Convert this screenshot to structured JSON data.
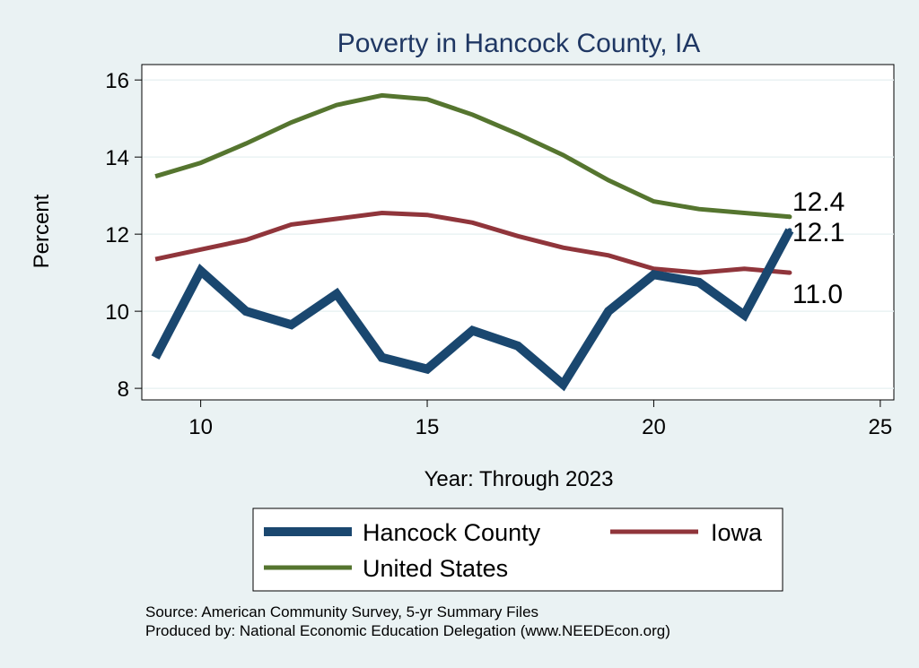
{
  "chart_data": {
    "type": "line",
    "title": "Poverty in Hancock County, IA",
    "xlabel": "Year: Through 2023",
    "ylabel": "Percent",
    "xlim": [
      8.7,
      25.3
    ],
    "ylim": [
      7.7,
      16.4
    ],
    "xticks": [
      10,
      15,
      20,
      25
    ],
    "yticks": [
      8,
      10,
      12,
      14,
      16
    ],
    "grid": true,
    "legend_position": "bottom",
    "series": [
      {
        "name": "Hancock County",
        "color": "#1a476f",
        "width": 10,
        "x": [
          9,
          10,
          11,
          12,
          13,
          14,
          15,
          16,
          17,
          18,
          19,
          20,
          21,
          22,
          23
        ],
        "y": [
          8.8,
          11.05,
          10.0,
          9.65,
          10.45,
          8.8,
          8.5,
          9.5,
          9.1,
          8.1,
          10.0,
          10.95,
          10.75,
          9.9,
          12.1
        ],
        "end_label": "12.1"
      },
      {
        "name": "Iowa",
        "color": "#90353b",
        "width": 5,
        "x": [
          9,
          10,
          11,
          12,
          13,
          14,
          15,
          16,
          17,
          18,
          19,
          20,
          21,
          22,
          23
        ],
        "y": [
          11.35,
          11.6,
          11.85,
          12.25,
          12.4,
          12.55,
          12.5,
          12.3,
          11.95,
          11.65,
          11.45,
          11.1,
          11.0,
          11.1,
          11.0
        ],
        "end_label": "11.0"
      },
      {
        "name": "United States",
        "color": "#55752f",
        "width": 5,
        "x": [
          9,
          10,
          11,
          12,
          13,
          14,
          15,
          16,
          17,
          18,
          19,
          20,
          21,
          22,
          23
        ],
        "y": [
          13.5,
          13.85,
          14.35,
          14.9,
          15.35,
          15.6,
          15.5,
          15.1,
          14.6,
          14.05,
          13.4,
          12.85,
          12.65,
          12.55,
          12.45
        ],
        "end_label": "12.4"
      }
    ],
    "legend_order": [
      "Hancock County",
      "Iowa",
      "United States"
    ],
    "source_lines": [
      "Source: American Community Survey, 5-yr Summary Files",
      "Produced by: National Economic Education Delegation (www.NEEDEcon.org)"
    ]
  }
}
